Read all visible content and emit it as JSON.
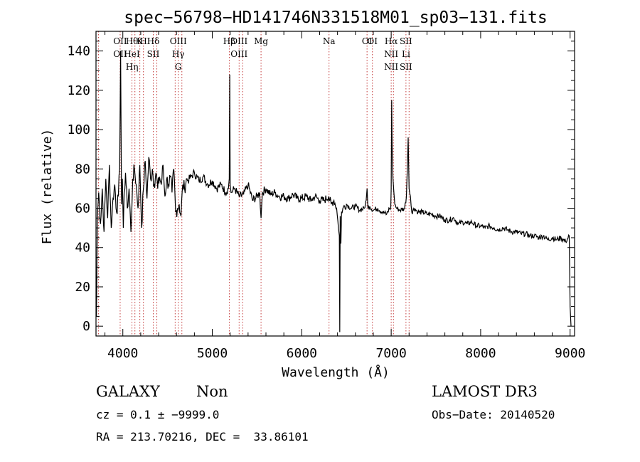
{
  "chart_data": {
    "type": "line",
    "title": "spec−56798−HD141746N331518M01_sp03−131.fits",
    "xlabel": "Wavelength (Å)",
    "ylabel": "Flux (relative)",
    "xlim": [
      3700,
      9050
    ],
    "ylim": [
      -5,
      150
    ],
    "xticks": [
      4000,
      5000,
      6000,
      7000,
      8000,
      9000
    ],
    "yticks": [
      0,
      20,
      40,
      60,
      80,
      100,
      120,
      140
    ],
    "series": [
      {
        "name": "flux",
        "x": [
          3700,
          3705,
          3715,
          3730,
          3750,
          3770,
          3790,
          3810,
          3830,
          3850,
          3870,
          3890,
          3910,
          3930,
          3950,
          3965,
          3975,
          3985,
          3995,
          4005,
          4015,
          4030,
          4050,
          4070,
          4090,
          4102,
          4110,
          4130,
          4150,
          4170,
          4190,
          4210,
          4230,
          4250,
          4270,
          4290,
          4310,
          4330,
          4350,
          4370,
          4390,
          4410,
          4430,
          4450,
          4470,
          4490,
          4510,
          4530,
          4550,
          4570,
          4590,
          4610,
          4630,
          4650,
          4670,
          4690,
          4710,
          4730,
          4760,
          4800,
          4850,
          4900,
          4950,
          5000,
          5050,
          5100,
          5150,
          5180,
          5190,
          5195,
          5200,
          5210,
          5250,
          5300,
          5350,
          5400,
          5450,
          5500,
          5530,
          5545,
          5560,
          5600,
          5650,
          5700,
          5750,
          5800,
          5850,
          5900,
          5950,
          6000,
          6050,
          6100,
          6150,
          6200,
          6250,
          6300,
          6330,
          6360,
          6390,
          6410,
          6420,
          6425,
          6430,
          6438,
          6445,
          6460,
          6500,
          6550,
          6600,
          6650,
          6700,
          6720,
          6730,
          6740,
          6760,
          6800,
          6850,
          6900,
          6950,
          6980,
          6995,
          7000,
          7005,
          7010,
          7020,
          7030,
          7040,
          7060,
          7100,
          7150,
          7170,
          7180,
          7190,
          7200,
          7215,
          7230,
          7260,
          7300,
          7350,
          7400,
          7450,
          7500,
          7550,
          7600,
          7650,
          7700,
          7750,
          7800,
          7850,
          7900,
          7950,
          8000,
          8050,
          8100,
          8150,
          8200,
          8250,
          8300,
          8350,
          8400,
          8450,
          8500,
          8550,
          8600,
          8650,
          8700,
          8750,
          8800,
          8850,
          8900,
          8950,
          8990,
          9000,
          9010
        ],
        "y": [
          10,
          5,
          55,
          68,
          52,
          70,
          48,
          75,
          55,
          82,
          50,
          65,
          72,
          58,
          66,
          80,
          140,
          62,
          75,
          50,
          68,
          78,
          60,
          70,
          48,
          62,
          75,
          80,
          72,
          60,
          82,
          50,
          70,
          84,
          65,
          86,
          75,
          80,
          72,
          78,
          70,
          76,
          72,
          82,
          66,
          75,
          72,
          76,
          68,
          80,
          58,
          60,
          62,
          56,
          72,
          70,
          75,
          74,
          76,
          78,
          74,
          76,
          72,
          74,
          70,
          72,
          68,
          70,
          75,
          128,
          72,
          68,
          70,
          66,
          67,
          72,
          64,
          66,
          68,
          55,
          68,
          70,
          67,
          68,
          66,
          66,
          65,
          67,
          65,
          65,
          66,
          64,
          66,
          64,
          64,
          66,
          62,
          64,
          60,
          50,
          46,
          -3,
          56,
          42,
          58,
          60,
          62,
          60,
          61,
          59,
          60,
          64,
          70,
          60,
          61,
          59,
          60,
          58,
          57,
          60,
          60,
          70,
          115,
          92,
          75,
          68,
          62,
          60,
          59,
          60,
          66,
          80,
          96,
          70,
          66,
          58,
          60,
          58,
          58,
          57,
          57,
          56,
          56,
          54,
          54,
          55,
          52,
          53,
          52,
          53,
          51,
          51,
          50,
          51,
          50,
          49,
          50,
          49,
          48,
          48,
          47,
          47,
          46,
          46,
          45,
          46,
          44,
          45,
          44,
          45,
          43,
          46,
          10,
          0
        ]
      }
    ],
    "lines": [
      {
        "x": 3727,
        "labels": []
      },
      {
        "x": 3970,
        "labels": [
          "OII",
          "OII"
        ]
      },
      {
        "x": 4102,
        "labels": [
          "Hθ",
          "HeI",
          "Hη"
        ]
      },
      {
        "x": 4135,
        "labels": []
      },
      {
        "x": 4190,
        "labels": [
          "K"
        ]
      },
      {
        "x": 4230,
        "labels": [
          "H"
        ]
      },
      {
        "x": 4340,
        "labels": [
          "Hδ",
          "SII"
        ]
      },
      {
        "x": 4380,
        "labels": []
      },
      {
        "x": 4585,
        "labels": []
      },
      {
        "x": 4620,
        "labels": [
          "OIII",
          "Hγ",
          "G"
        ]
      },
      {
        "x": 4660,
        "labels": []
      },
      {
        "x": 5190,
        "labels": [
          "Hβ"
        ]
      },
      {
        "x": 5300,
        "labels": [
          "OIII",
          "OIII"
        ]
      },
      {
        "x": 5340,
        "labels": []
      },
      {
        "x": 5545,
        "labels": [
          "Mg"
        ]
      },
      {
        "x": 6305,
        "labels": [
          "Na"
        ]
      },
      {
        "x": 6730,
        "labels": [
          "OI"
        ]
      },
      {
        "x": 6790,
        "labels": [
          "OI"
        ]
      },
      {
        "x": 7000,
        "labels": [
          "Hα",
          "NII",
          "NII"
        ]
      },
      {
        "x": 7025,
        "labels": []
      },
      {
        "x": 7165,
        "labels": [
          "SII",
          "Li",
          "SII"
        ]
      },
      {
        "x": 7200,
        "labels": []
      }
    ]
  },
  "info": {
    "class": "GALAXY",
    "subclass": "Non",
    "survey": "LAMOST DR3",
    "cz": "cz = 0.1 ± −9999.0",
    "obs_date": "Obs−Date: 20140520",
    "radec": "RA = 213.70216, DEC =  33.86101"
  }
}
